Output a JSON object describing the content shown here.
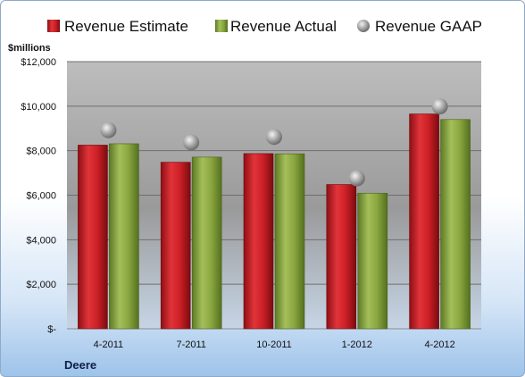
{
  "chart_data": {
    "type": "bar",
    "company": "Deere",
    "unit_label": "$millions",
    "categories": [
      "4-2011",
      "7-2011",
      "10-2011",
      "1-2012",
      "4-2012"
    ],
    "series": [
      {
        "name": "Revenue Estimate",
        "kind": "bar",
        "color": "#cc1f26",
        "values": [
          8250,
          7480,
          7870,
          6480,
          9650
        ]
      },
      {
        "name": "Revenue Actual",
        "kind": "bar",
        "color": "#8aa63f",
        "values": [
          8310,
          7710,
          7860,
          6090,
          9400
        ]
      },
      {
        "name": "Revenue GAAP",
        "kind": "marker",
        "color": "#a8a8a8",
        "values": [
          8920,
          8370,
          8620,
          6760,
          9990
        ]
      }
    ],
    "ylim": [
      0,
      12000
    ],
    "yticks": [
      {
        "value": 0,
        "label": "$-"
      },
      {
        "value": 2000,
        "label": "$2,000"
      },
      {
        "value": 4000,
        "label": "$4,000"
      },
      {
        "value": 6000,
        "label": "$6,000"
      },
      {
        "value": 8000,
        "label": "$8,000"
      },
      {
        "value": 10000,
        "label": "$10,000"
      },
      {
        "value": 12000,
        "label": "$12,000"
      }
    ],
    "grid": true,
    "legend_position": "top"
  }
}
